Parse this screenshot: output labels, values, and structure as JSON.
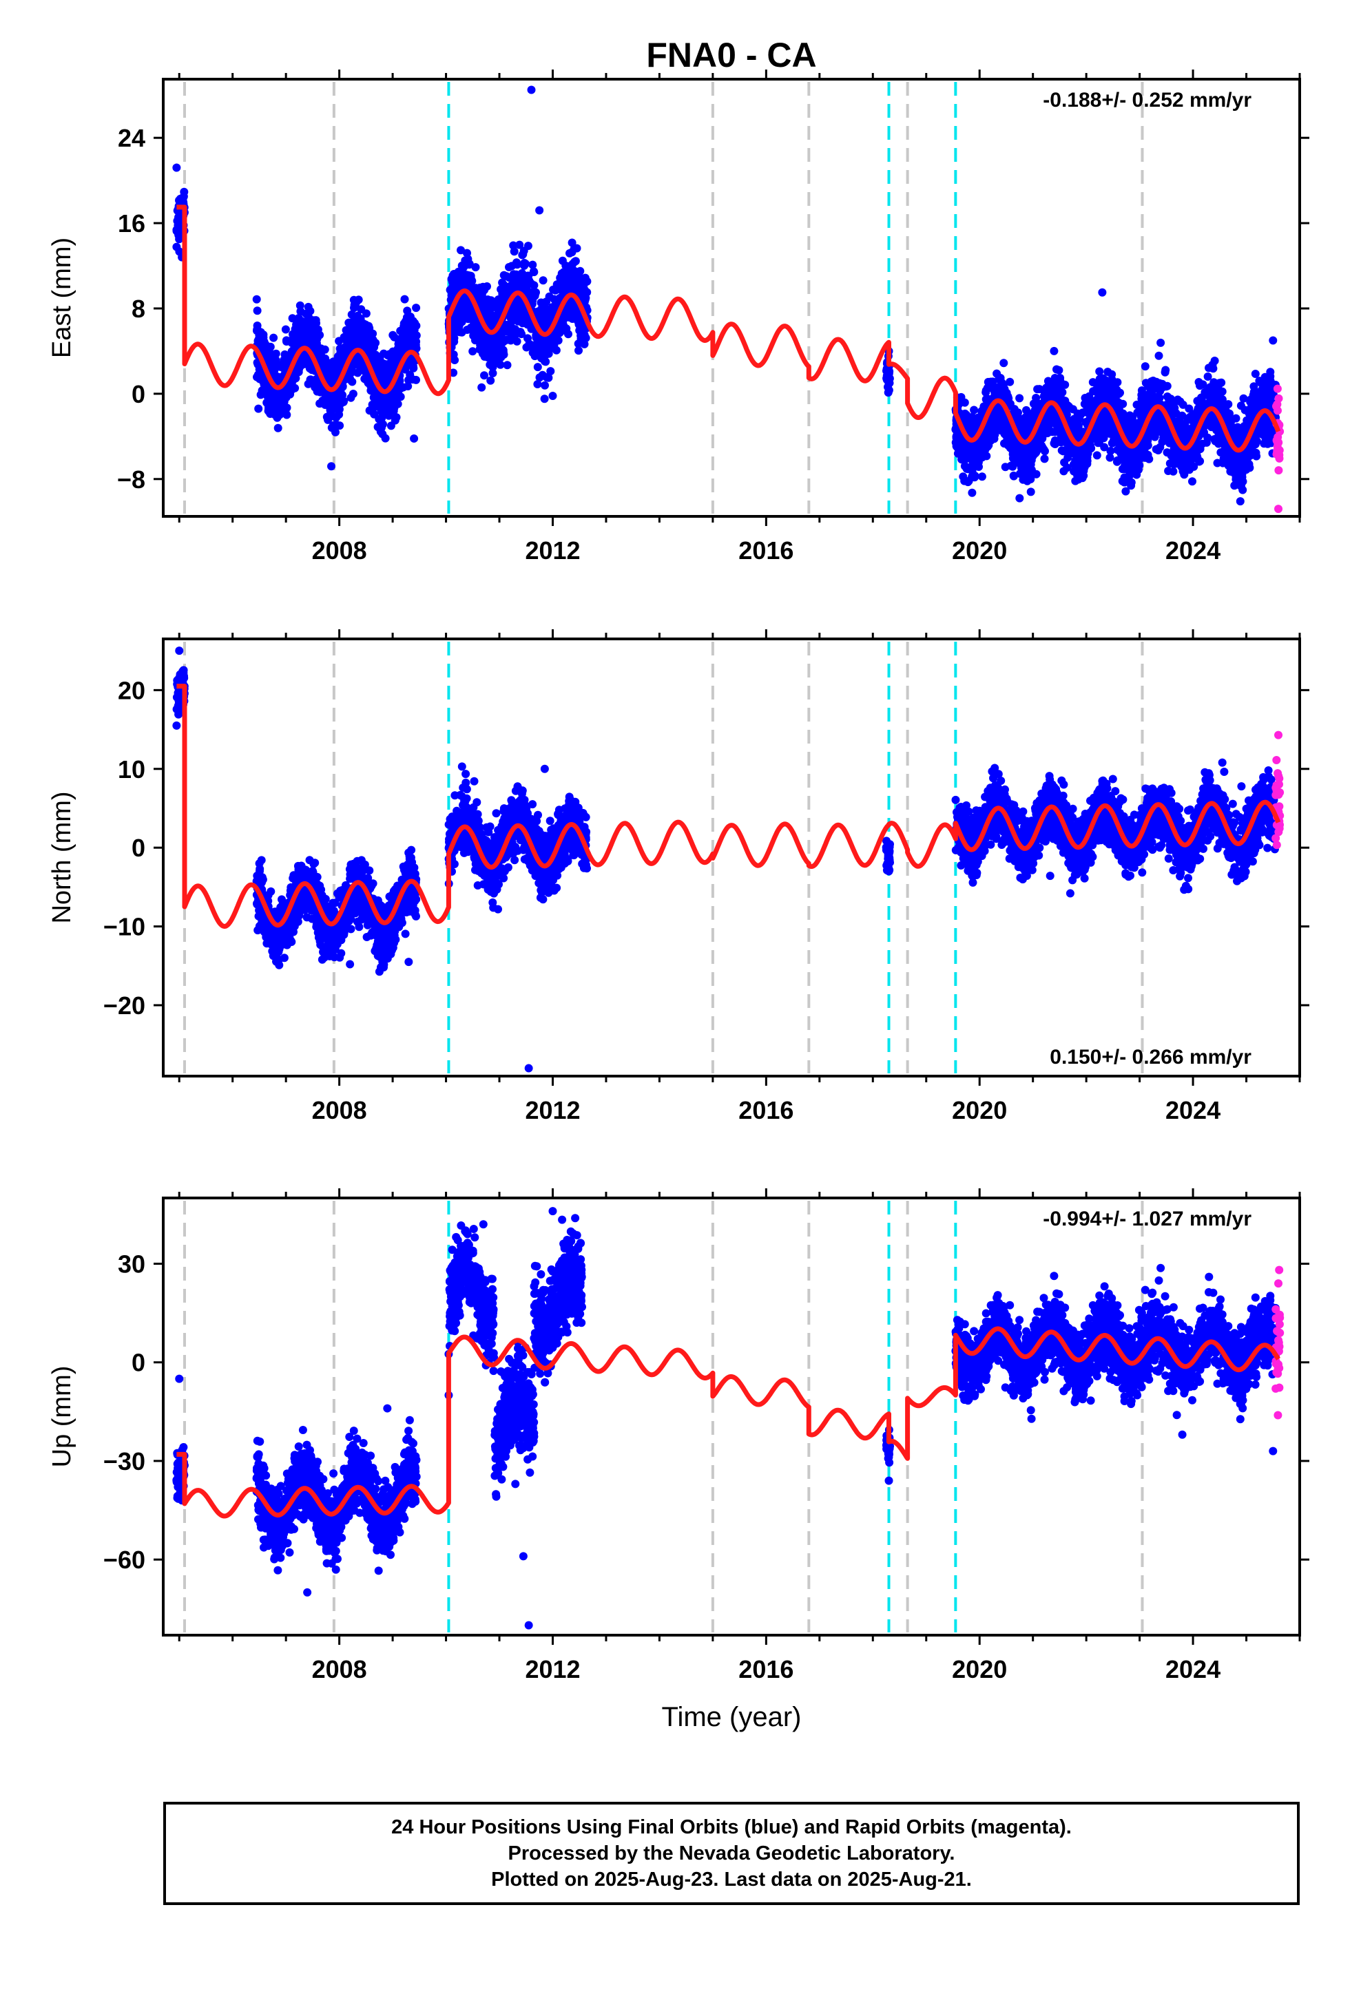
{
  "title": "FNA0 - CA",
  "xlabel": "Time (year)",
  "footer": {
    "line1": "24 Hour Positions Using Final Orbits (blue) and Rapid Orbits (magenta).",
    "line2": "Processed by the Nevada Geodetic Laboratory.",
    "line3": "Plotted on 2025-Aug-23. Last data on 2025-Aug-21."
  },
  "colors": {
    "final": "#0000ff",
    "rapid": "#ff22dd",
    "model": "#ff1a1a",
    "equipment_change": "#c8c8c8",
    "earthquake": "#00e5ee"
  },
  "chart_data": [
    {
      "type": "scatter",
      "component": "east",
      "ylabel": "East (mm)",
      "rate": "-0.188+/- 0.252 mm/yr",
      "rate_position": "top-right",
      "xlim": [
        2004.7,
        2026.0
      ],
      "ylim": [
        -11.5,
        29.5
      ],
      "yticks": [
        -8,
        0,
        8,
        16,
        24
      ],
      "xticks": [
        2008,
        2012,
        2016,
        2020,
        2024
      ],
      "equipment_changes": [
        2005.1,
        2007.9,
        2015.0,
        2016.8,
        2018.65
      ],
      "earthquakes": [
        2010.05,
        2018.3,
        2019.55
      ],
      "extra_gray": [
        2023.05
      ],
      "final_segments": [
        {
          "x": [
            2004.95,
            2005.1
          ],
          "mean": 17.5,
          "scatter": 2.2,
          "noise": 1.2,
          "outliers": [
            [
              2004.95,
              21.2
            ],
            [
              2005.05,
              12.8
            ]
          ]
        },
        {
          "x": [
            2006.45,
            2009.45
          ],
          "mean": 2.5,
          "scatter": 2.5,
          "noise": 1.6,
          "outliers": [
            [
              2007.85,
              -6.8
            ],
            [
              2009.4,
              -4.2
            ]
          ]
        },
        {
          "x": [
            2010.05,
            2012.65
          ],
          "mean": 7.5,
          "scatter": 2.0,
          "noise": 1.8,
          "outliers": [
            [
              2011.6,
              28.5
            ],
            [
              2011.75,
              17.2
            ],
            [
              2012.0,
              -0.2
            ]
          ]
        },
        {
          "x": [
            2018.25,
            2018.32
          ],
          "mean": 1.5,
          "scatter": 0.5,
          "noise": 1.0,
          "outliers": [
            [
              2018.3,
              4.0
            ]
          ]
        },
        {
          "x": [
            2019.55,
            2025.55
          ],
          "mean": -3.2,
          "scatter": 2.0,
          "noise": 1.6,
          "outliers": [
            [
              2020.75,
              -9.8
            ],
            [
              2022.3,
              9.5
            ],
            [
              2025.5,
              5.0
            ]
          ]
        }
      ],
      "rapid_segment": {
        "x": [
          2025.55,
          2025.63
        ],
        "mean": -4.0,
        "noise": 2.0,
        "outliers": [
          [
            2025.6,
            -10.8
          ]
        ]
      },
      "model_segments": [
        {
          "x": [
            2004.95,
            2005.1
          ],
          "offset": 17.5,
          "amp": 0.0,
          "trend": 0.0
        },
        {
          "x": [
            2005.1,
            2010.05
          ],
          "offset": 2.8,
          "amp": 1.9,
          "trend": -0.188
        },
        {
          "x": [
            2010.05,
            2015.0
          ],
          "offset": 7.8,
          "amp": 1.9,
          "trend": -0.188
        },
        {
          "x": [
            2015.0,
            2016.8
          ],
          "offset": 4.7,
          "amp": 1.9,
          "trend": -0.188
        },
        {
          "x": [
            2016.8,
            2018.3
          ],
          "offset": 3.3,
          "amp": 1.9,
          "trend": -0.188
        },
        {
          "x": [
            2018.3,
            2018.65
          ],
          "offset": 1.8,
          "amp": 1.0,
          "trend": -0.188
        },
        {
          "x": [
            2018.65,
            2019.55
          ],
          "offset": -0.3,
          "amp": 1.9,
          "trend": -0.188
        },
        {
          "x": [
            2019.55,
            2025.6
          ],
          "offset": -2.4,
          "amp": 1.9,
          "trend": -0.188
        }
      ]
    },
    {
      "type": "scatter",
      "component": "north",
      "ylabel": "North (mm)",
      "rate": "0.150+/- 0.266 mm/yr",
      "rate_position": "bottom-right",
      "xlim": [
        2004.7,
        2026.0
      ],
      "ylim": [
        -29,
        26.5
      ],
      "yticks": [
        -20,
        -10,
        0,
        10,
        20
      ],
      "xticks": [
        2008,
        2012,
        2016,
        2020,
        2024
      ],
      "equipment_changes": [
        2005.1,
        2007.9,
        2015.0,
        2016.8,
        2018.65
      ],
      "earthquakes": [
        2010.05,
        2018.3,
        2019.55
      ],
      "extra_gray": [
        2023.05
      ],
      "final_segments": [
        {
          "x": [
            2004.95,
            2005.1
          ],
          "mean": 20.5,
          "scatter": 2.2,
          "noise": 1.4,
          "outliers": [
            [
              2005.0,
              25.0
            ],
            [
              2004.95,
              15.5
            ]
          ]
        },
        {
          "x": [
            2006.45,
            2009.45
          ],
          "mean": -8.0,
          "scatter": 3.0,
          "noise": 1.8,
          "outliers": [
            [
              2008.2,
              -14.8
            ],
            [
              2009.3,
              -14.5
            ]
          ]
        },
        {
          "x": [
            2010.05,
            2012.65
          ],
          "mean": 0.5,
          "scatter": 2.6,
          "noise": 1.9,
          "outliers": [
            [
              2010.3,
              10.3
            ],
            [
              2011.85,
              10.0
            ],
            [
              2011.55,
              -28.0
            ]
          ]
        },
        {
          "x": [
            2018.25,
            2018.32
          ],
          "mean": -1.5,
          "scatter": 0.5,
          "noise": 1.0,
          "outliers": [
            [
              2018.3,
              -3.0
            ]
          ]
        },
        {
          "x": [
            2019.55,
            2025.55
          ],
          "mean": 2.5,
          "scatter": 2.6,
          "noise": 1.8,
          "outliers": [
            [
              2021.7,
              -5.8
            ],
            [
              2024.55,
              10.8
            ],
            [
              2020.4,
              8.5
            ]
          ]
        }
      ],
      "rapid_segment": {
        "x": [
          2025.55,
          2025.63
        ],
        "mean": 6.0,
        "noise": 2.5,
        "outliers": [
          [
            2025.6,
            14.3
          ],
          [
            2025.55,
            1.2
          ]
        ]
      },
      "model_segments": [
        {
          "x": [
            2004.95,
            2005.1
          ],
          "offset": 20.5,
          "amp": 0.0,
          "trend": 0.0
        },
        {
          "x": [
            2005.1,
            2010.05
          ],
          "offset": -7.5,
          "amp": 2.6,
          "trend": 0.15
        },
        {
          "x": [
            2010.05,
            2015.0
          ],
          "offset": 0.0,
          "amp": 2.6,
          "trend": 0.15
        },
        {
          "x": [
            2015.0,
            2016.8
          ],
          "offset": 0.2,
          "amp": 2.6,
          "trend": 0.15
        },
        {
          "x": [
            2016.8,
            2018.3
          ],
          "offset": 0.2,
          "amp": 2.6,
          "trend": 0.15
        },
        {
          "x": [
            2018.3,
            2018.65
          ],
          "offset": 0.5,
          "amp": 2.6,
          "trend": 0.15
        },
        {
          "x": [
            2018.65,
            2019.55
          ],
          "offset": 0.2,
          "amp": 2.6,
          "trend": 0.15
        },
        {
          "x": [
            2019.55,
            2025.6
          ],
          "offset": 2.3,
          "amp": 2.6,
          "trend": 0.15
        }
      ]
    },
    {
      "type": "scatter",
      "component": "up",
      "ylabel": "Up (mm)",
      "rate": "-0.994+/- 1.027 mm/yr",
      "rate_position": "top-right",
      "xlim": [
        2004.7,
        2026.0
      ],
      "ylim": [
        -83,
        50
      ],
      "yticks": [
        -60,
        -30,
        0,
        30
      ],
      "xticks": [
        2008,
        2012,
        2016,
        2020,
        2024
      ],
      "equipment_changes": [
        2005.1,
        2007.9,
        2015.0,
        2016.8,
        2018.65
      ],
      "earthquakes": [
        2010.05,
        2018.3,
        2019.55
      ],
      "extra_gray": [
        2023.05
      ],
      "final_segments": [
        {
          "x": [
            2004.95,
            2005.1
          ],
          "mean": -30.0,
          "scatter": 6.0,
          "noise": 4.0,
          "outliers": [
            [
              2005.0,
              -5.0
            ],
            [
              2005.05,
              -42.0
            ]
          ]
        },
        {
          "x": [
            2006.45,
            2009.45
          ],
          "mean": -42.0,
          "scatter": 8.0,
          "noise": 5.0,
          "outliers": [
            [
              2007.4,
              -70.0
            ],
            [
              2008.9,
              -14.0
            ]
          ]
        },
        {
          "x": [
            2010.05,
            2010.9
          ],
          "mean": 20.0,
          "scatter": 8.0,
          "noise": 6.0,
          "outliers": [
            [
              2010.7,
              42.0
            ],
            [
              2010.05,
              -10.0
            ]
          ]
        },
        {
          "x": [
            2010.9,
            2011.65
          ],
          "mean": -18.0,
          "scatter": 8.0,
          "noise": 7.0,
          "outliers": [
            [
              2011.45,
              -59.0
            ],
            [
              2011.55,
              -80.0
            ],
            [
              2011.3,
              -37.0
            ]
          ]
        },
        {
          "x": [
            2011.65,
            2012.55
          ],
          "mean": 18.0,
          "scatter": 9.0,
          "noise": 7.0,
          "outliers": [
            [
              2012.0,
              46.0
            ]
          ]
        },
        {
          "x": [
            2018.25,
            2018.32
          ],
          "mean": -28.0,
          "scatter": 3.0,
          "noise": 3.0,
          "outliers": [
            [
              2018.3,
              -36.0
            ]
          ]
        },
        {
          "x": [
            2019.55,
            2025.55
          ],
          "mean": 4.0,
          "scatter": 6.0,
          "noise": 5.0,
          "outliers": [
            [
              2023.8,
              -22.0
            ],
            [
              2025.5,
              -27.0
            ],
            [
              2024.3,
              26.0
            ]
          ]
        }
      ],
      "rapid_segment": {
        "x": [
          2025.55,
          2025.63
        ],
        "mean": 6.0,
        "noise": 8.0,
        "outliers": [
          [
            2025.6,
            24.0
          ],
          [
            2025.55,
            -8.0
          ]
        ]
      },
      "model_segments": [
        {
          "x": [
            2004.95,
            2005.1
          ],
          "offset": -28.0,
          "amp": 0.0,
          "trend": 0.0
        },
        {
          "x": [
            2005.1,
            2010.05
          ],
          "offset": -43.0,
          "amp": 4.0,
          "trend": 0.3
        },
        {
          "x": [
            2010.05,
            2015.0
          ],
          "offset": 4.0,
          "amp": 4.0,
          "trend": -0.994
        },
        {
          "x": [
            2015.0,
            2016.8
          ],
          "offset": -8.0,
          "amp": 4.0,
          "trend": -0.994
        },
        {
          "x": [
            2016.8,
            2018.3
          ],
          "offset": -18.0,
          "amp": 4.0,
          "trend": -0.994
        },
        {
          "x": [
            2018.3,
            2018.65
          ],
          "offset": -28.0,
          "amp": 4.0,
          "trend": 0.0
        },
        {
          "x": [
            2018.65,
            2019.55
          ],
          "offset": -10.0,
          "amp": 3.0,
          "trend": -0.994
        },
        {
          "x": [
            2019.55,
            2025.6
          ],
          "offset": 7.0,
          "amp": 4.0,
          "trend": -0.994
        }
      ]
    }
  ]
}
